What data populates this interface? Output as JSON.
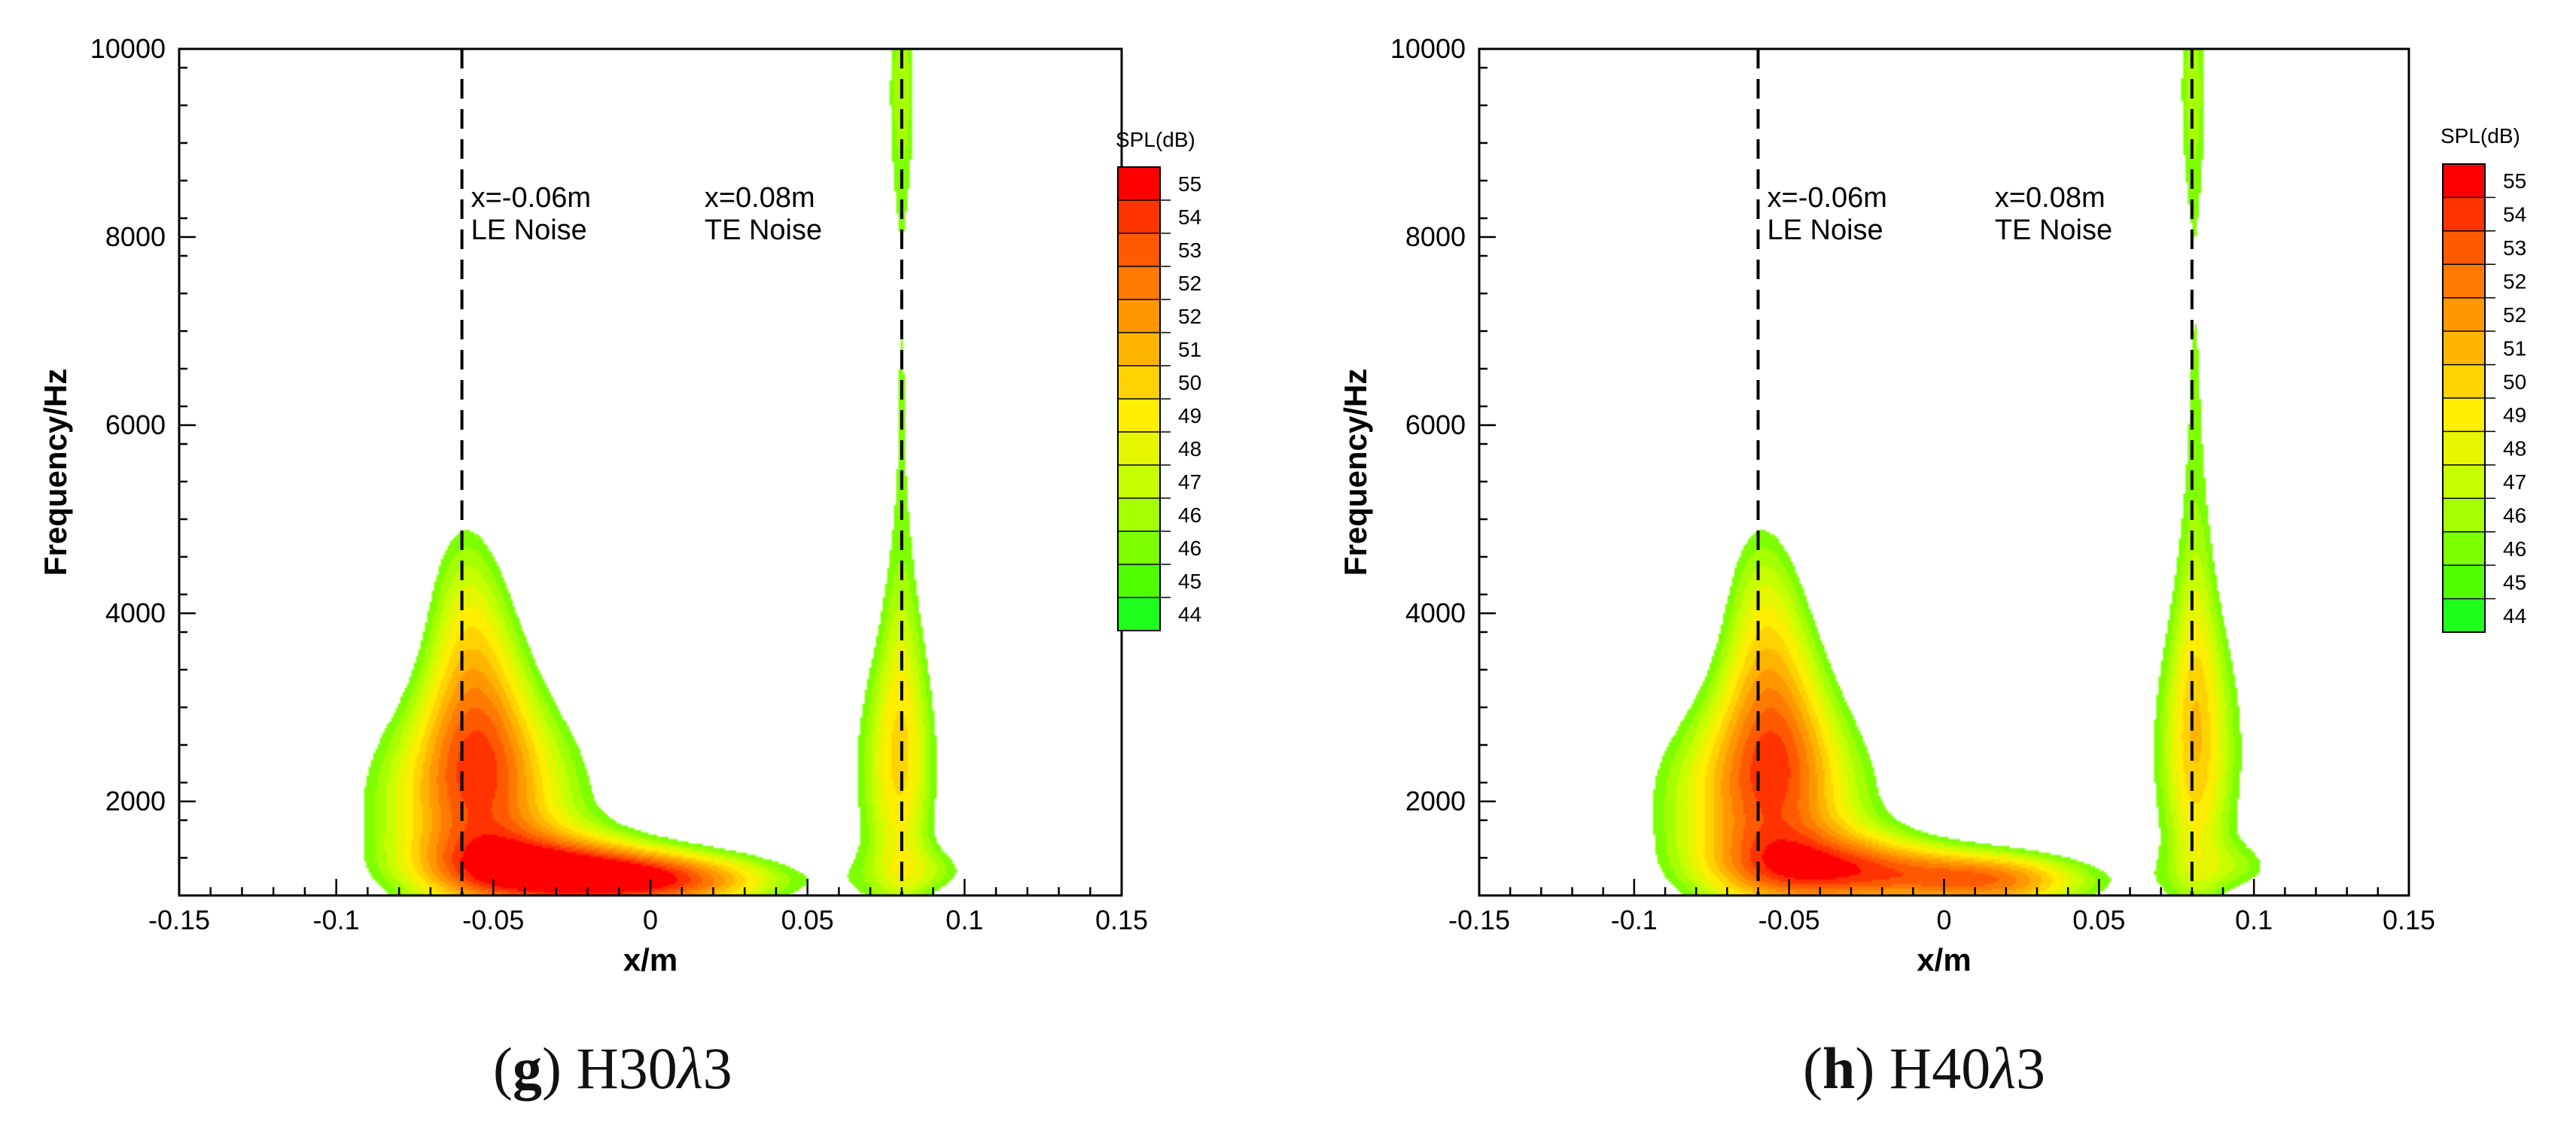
{
  "chart_data": [
    {
      "panel": "g",
      "caption_letter": "g",
      "caption_prefix": "H30",
      "caption_symbol": "λ",
      "caption_suffix": "3",
      "type": "heatmap",
      "xlabel": "x/m",
      "ylabel": "Frequency/Hz",
      "xlim": [
        -0.15,
        0.15
      ],
      "ylim": [
        1000,
        10000
      ],
      "xticks": [
        "-0.15",
        "-0.1",
        "-0.05",
        "0",
        "0.05",
        "0.1",
        "0.15"
      ],
      "yticks": [
        "2000",
        "4000",
        "6000",
        "8000",
        "10000"
      ],
      "annotations": [
        {
          "x_at": -0.06,
          "line1": "x=-0.06m",
          "line2": "LE Noise"
        },
        {
          "x_at": 0.08,
          "line1": "x=0.08m",
          "line2": "TE Noise"
        }
      ],
      "blobs": [
        {
          "x": -0.055,
          "y": 2000,
          "sx": 0.03,
          "sy": 900,
          "amp": 12
        },
        {
          "x": -0.055,
          "y": 3300,
          "sx": 0.014,
          "sy": 1100,
          "amp": 8
        },
        {
          "x": -0.06,
          "y": 4500,
          "sx": 0.01,
          "sy": 900,
          "amp": 3.5
        },
        {
          "x": -0.03,
          "y": 1250,
          "sx": 0.03,
          "sy": 300,
          "amp": 10
        },
        {
          "x": 0.01,
          "y": 1150,
          "sx": 0.03,
          "sy": 250,
          "amp": 12
        },
        {
          "x": 0.078,
          "y": 2300,
          "sx": 0.014,
          "sy": 1300,
          "amp": 8.5
        },
        {
          "x": 0.08,
          "y": 6500,
          "sx": 0.006,
          "sy": 3500,
          "amp": 6
        },
        {
          "x": 0.08,
          "y": 9800,
          "sx": 0.004,
          "sy": 900,
          "amp": 4
        },
        {
          "x": 0.095,
          "y": 1250,
          "sx": 0.012,
          "sy": 200,
          "amp": 3.5
        },
        {
          "x": 0.018,
          "y": 2550,
          "sx": 0.006,
          "sy": 140,
          "amp": 3.5
        },
        {
          "x": -0.115,
          "y": 1250,
          "sx": 0.01,
          "sy": 150,
          "amp": 3.5
        },
        {
          "x": 0.148,
          "y": 1050,
          "sx": 0.006,
          "sy": 90,
          "amp": 3
        }
      ]
    },
    {
      "panel": "h",
      "caption_letter": "h",
      "caption_prefix": "H40",
      "caption_symbol": "λ",
      "caption_suffix": "3",
      "type": "heatmap",
      "xlabel": "x/m",
      "ylabel": "Frequency/Hz",
      "xlim": [
        -0.15,
        0.15
      ],
      "ylim": [
        1000,
        10000
      ],
      "xticks": [
        "-0.15",
        "-0.1",
        "-0.05",
        "0",
        "0.05",
        "0.1",
        "0.15"
      ],
      "yticks": [
        "2000",
        "4000",
        "6000",
        "8000",
        "10000"
      ],
      "annotations": [
        {
          "x_at": -0.06,
          "line1": "x=-0.06m",
          "line2": "LE Noise"
        },
        {
          "x_at": 0.08,
          "line1": "x=0.08m",
          "line2": "TE Noise"
        }
      ],
      "blobs": [
        {
          "x": -0.058,
          "y": 2000,
          "sx": 0.03,
          "sy": 900,
          "amp": 12
        },
        {
          "x": -0.055,
          "y": 3300,
          "sx": 0.014,
          "sy": 1100,
          "amp": 8
        },
        {
          "x": -0.06,
          "y": 4500,
          "sx": 0.01,
          "sy": 900,
          "amp": 3.5
        },
        {
          "x": -0.03,
          "y": 1250,
          "sx": 0.03,
          "sy": 300,
          "amp": 10
        },
        {
          "x": 0.02,
          "y": 1150,
          "sx": 0.025,
          "sy": 250,
          "amp": 12
        },
        {
          "x": 0.082,
          "y": 2500,
          "sx": 0.015,
          "sy": 1400,
          "amp": 9
        },
        {
          "x": 0.081,
          "y": 6500,
          "sx": 0.006,
          "sy": 3500,
          "amp": 6
        },
        {
          "x": 0.08,
          "y": 9800,
          "sx": 0.004,
          "sy": 900,
          "amp": 4
        },
        {
          "x": 0.1,
          "y": 1300,
          "sx": 0.012,
          "sy": 200,
          "amp": 3.5
        },
        {
          "x": 0.018,
          "y": 2550,
          "sx": 0.006,
          "sy": 140,
          "amp": 3.5
        },
        {
          "x": -0.11,
          "y": 1150,
          "sx": 0.006,
          "sy": 120,
          "amp": 3.5
        },
        {
          "x": 0.148,
          "y": 1050,
          "sx": 0.006,
          "sy": 90,
          "amp": 3
        }
      ]
    }
  ],
  "colorbar": {
    "title": "SPL(dB)",
    "levels": [
      "55",
      "54",
      "53",
      "52",
      "52",
      "51",
      "50",
      "49",
      "48",
      "47",
      "46",
      "46",
      "45",
      "44"
    ],
    "colors": [
      "#ff0000",
      "#ff3300",
      "#ff5a00",
      "#ff7a00",
      "#ff9800",
      "#ffb400",
      "#ffd200",
      "#ffee00",
      "#e6f500",
      "#c8ff00",
      "#a5ff00",
      "#7dff00",
      "#50ff00",
      "#1eff1e"
    ]
  }
}
